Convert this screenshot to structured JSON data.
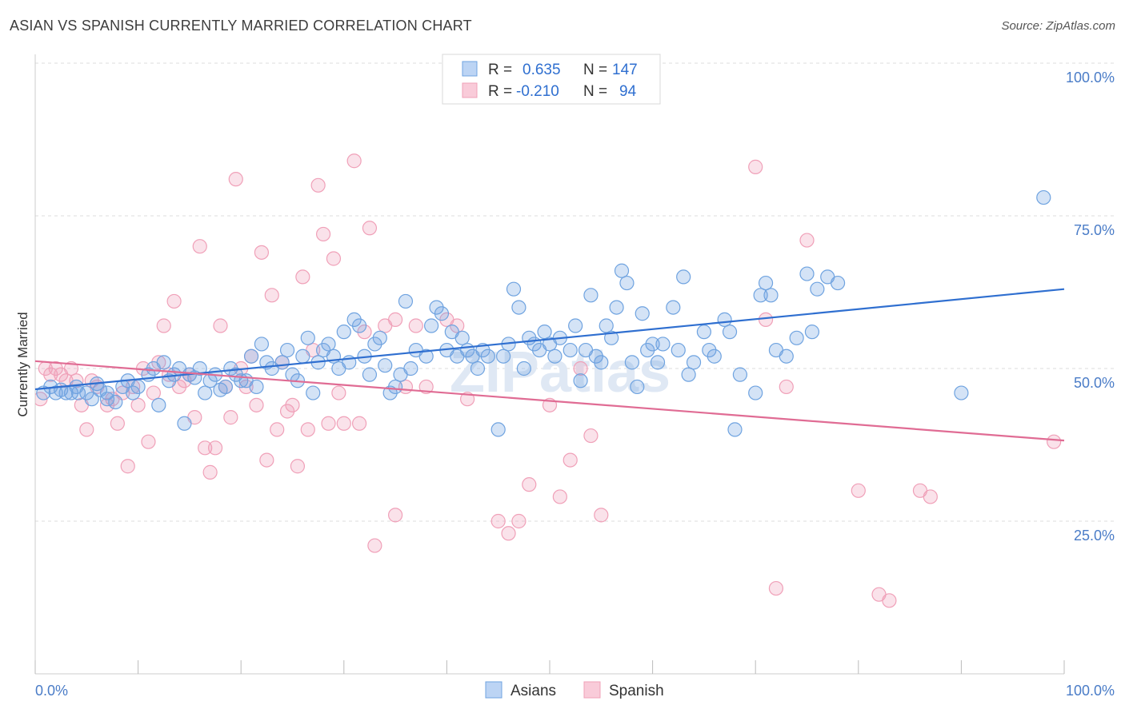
{
  "title": "ASIAN VS SPANISH CURRENTLY MARRIED CORRELATION CHART",
  "source": "Source: ZipAtlas.com",
  "chart_data": {
    "type": "scatter",
    "ylabel": "Currently Married",
    "x_tick_labels": [
      "0.0%",
      "100.0%"
    ],
    "y_tick_labels": [
      "25.0%",
      "50.0%",
      "75.0%",
      "100.0%"
    ],
    "xlim": [
      0,
      100
    ],
    "ylim": [
      0,
      105
    ],
    "grid": true,
    "legend_position": "top-center",
    "series": [
      {
        "name": "Asians",
        "color": "#6fa3e0",
        "line_color": "#2f6fd0",
        "stats": {
          "r_label": "R =",
          "r_value": "0.635",
          "n_label": "N =",
          "n_value": "147"
        },
        "trend": {
          "x": [
            0,
            100
          ],
          "y": [
            46.6,
            63.0
          ]
        },
        "points": [
          [
            0.8,
            46
          ],
          [
            1.5,
            47
          ],
          [
            2,
            46
          ],
          [
            2.5,
            46.5
          ],
          [
            3,
            46
          ],
          [
            3.5,
            46
          ],
          [
            4,
            47
          ],
          [
            4.2,
            46
          ],
          [
            5,
            46
          ],
          [
            5.5,
            45
          ],
          [
            6,
            47.5
          ],
          [
            6.3,
            46.5
          ],
          [
            7,
            46
          ],
          [
            7,
            45
          ],
          [
            7.8,
            44.5
          ],
          [
            8.5,
            47
          ],
          [
            9,
            48
          ],
          [
            9.5,
            46
          ],
          [
            10,
            47
          ],
          [
            11,
            49
          ],
          [
            11.5,
            50
          ],
          [
            12,
            44
          ],
          [
            12.5,
            51
          ],
          [
            13,
            48
          ],
          [
            13.5,
            49
          ],
          [
            14,
            50
          ],
          [
            14.5,
            41
          ],
          [
            15,
            49
          ],
          [
            15.5,
            48.5
          ],
          [
            16,
            50
          ],
          [
            16.5,
            46
          ],
          [
            17,
            48
          ],
          [
            17.5,
            49
          ],
          [
            18,
            46.5
          ],
          [
            18.5,
            47
          ],
          [
            19,
            50
          ],
          [
            19.5,
            49
          ],
          [
            20,
            48
          ],
          [
            20.5,
            48
          ],
          [
            21,
            52
          ],
          [
            21.5,
            47
          ],
          [
            22,
            54
          ],
          [
            22.5,
            51
          ],
          [
            23,
            50
          ],
          [
            24,
            51
          ],
          [
            24.5,
            53
          ],
          [
            25,
            49
          ],
          [
            25.5,
            48
          ],
          [
            26,
            52
          ],
          [
            26.5,
            55
          ],
          [
            27,
            46
          ],
          [
            27.5,
            51
          ],
          [
            28,
            53
          ],
          [
            28.5,
            54
          ],
          [
            29,
            52
          ],
          [
            29.5,
            50
          ],
          [
            30,
            56
          ],
          [
            30.5,
            51
          ],
          [
            31,
            58
          ],
          [
            31.5,
            57
          ],
          [
            32,
            52
          ],
          [
            32.5,
            49
          ],
          [
            33,
            54
          ],
          [
            33.5,
            55
          ],
          [
            34,
            50.5
          ],
          [
            34.5,
            46
          ],
          [
            35,
            47
          ],
          [
            35.5,
            49
          ],
          [
            36,
            61
          ],
          [
            36.5,
            50
          ],
          [
            37,
            53
          ],
          [
            38,
            52
          ],
          [
            38.5,
            57
          ],
          [
            39,
            60
          ],
          [
            39.5,
            59
          ],
          [
            40,
            53
          ],
          [
            40.5,
            56
          ],
          [
            41,
            52
          ],
          [
            41.5,
            55
          ],
          [
            42,
            53
          ],
          [
            42.5,
            52
          ],
          [
            43,
            50
          ],
          [
            43.5,
            53
          ],
          [
            44,
            52
          ],
          [
            45,
            40
          ],
          [
            45.5,
            52
          ],
          [
            46,
            54
          ],
          [
            46.5,
            63
          ],
          [
            47,
            60
          ],
          [
            47.5,
            50
          ],
          [
            48,
            55
          ],
          [
            48.5,
            54
          ],
          [
            49,
            53
          ],
          [
            49.5,
            56
          ],
          [
            50,
            54
          ],
          [
            50.5,
            52
          ],
          [
            51,
            55
          ],
          [
            52,
            53
          ],
          [
            52.5,
            57
          ],
          [
            53,
            48
          ],
          [
            53.5,
            53
          ],
          [
            54,
            62
          ],
          [
            54.5,
            52
          ],
          [
            55,
            51
          ],
          [
            55.5,
            57
          ],
          [
            56,
            55
          ],
          [
            56.5,
            60
          ],
          [
            57,
            66
          ],
          [
            57.5,
            64
          ],
          [
            58,
            51
          ],
          [
            58.5,
            47
          ],
          [
            59,
            59
          ],
          [
            59.5,
            53
          ],
          [
            60,
            54
          ],
          [
            60.5,
            51
          ],
          [
            61,
            54
          ],
          [
            62,
            60
          ],
          [
            62.5,
            53
          ],
          [
            63,
            65
          ],
          [
            63.5,
            49
          ],
          [
            64,
            51
          ],
          [
            65,
            56
          ],
          [
            65.5,
            53
          ],
          [
            66,
            52
          ],
          [
            67,
            58
          ],
          [
            67.5,
            56
          ],
          [
            68,
            40
          ],
          [
            68.5,
            49
          ],
          [
            70,
            46
          ],
          [
            70.5,
            62
          ],
          [
            71,
            64
          ],
          [
            71.5,
            62
          ],
          [
            72,
            53
          ],
          [
            73,
            52
          ],
          [
            74,
            55
          ],
          [
            75,
            65.5
          ],
          [
            75.5,
            56
          ],
          [
            76,
            63
          ],
          [
            77,
            65
          ],
          [
            78,
            64
          ],
          [
            98,
            78
          ],
          [
            90,
            46
          ]
        ]
      },
      {
        "name": "Spanish",
        "color": "#f0a0b8",
        "line_color": "#e06c94",
        "stats": {
          "r_label": "R =",
          "r_value": "-0.210",
          "n_label": "N =",
          "n_value": "94"
        },
        "trend": {
          "x": [
            0,
            100
          ],
          "y": [
            51.2,
            38.2
          ]
        },
        "points": [
          [
            0.5,
            45
          ],
          [
            1,
            50
          ],
          [
            1.5,
            49
          ],
          [
            2,
            50
          ],
          [
            2.5,
            49
          ],
          [
            3,
            48
          ],
          [
            3.5,
            50
          ],
          [
            4,
            48
          ],
          [
            4.5,
            44
          ],
          [
            5,
            40
          ],
          [
            5.5,
            48
          ],
          [
            6,
            47
          ],
          [
            7,
            44
          ],
          [
            7.5,
            45
          ],
          [
            8,
            41
          ],
          [
            8.5,
            46
          ],
          [
            9,
            34
          ],
          [
            9.5,
            47
          ],
          [
            10,
            44
          ],
          [
            10.5,
            50
          ],
          [
            11,
            38
          ],
          [
            11.5,
            46
          ],
          [
            12,
            51
          ],
          [
            12.5,
            57
          ],
          [
            13,
            49
          ],
          [
            13.5,
            61
          ],
          [
            14,
            47
          ],
          [
            14.5,
            48
          ],
          [
            15,
            49
          ],
          [
            15.5,
            42
          ],
          [
            16,
            70
          ],
          [
            16.5,
            37
          ],
          [
            17,
            33
          ],
          [
            17.5,
            37
          ],
          [
            18,
            57
          ],
          [
            18.5,
            47
          ],
          [
            19,
            42
          ],
          [
            19.5,
            81
          ],
          [
            20,
            50
          ],
          [
            20.5,
            47
          ],
          [
            21,
            52
          ],
          [
            21.5,
            44
          ],
          [
            22,
            69
          ],
          [
            22.5,
            35
          ],
          [
            23,
            62
          ],
          [
            23.5,
            40
          ],
          [
            24,
            51
          ],
          [
            24.5,
            43
          ],
          [
            25,
            44
          ],
          [
            25.5,
            34
          ],
          [
            26,
            65
          ],
          [
            26.5,
            40
          ],
          [
            27,
            53
          ],
          [
            27.5,
            80
          ],
          [
            28,
            72
          ],
          [
            28.5,
            41
          ],
          [
            29,
            68
          ],
          [
            29.5,
            46
          ],
          [
            30,
            41
          ],
          [
            31,
            84
          ],
          [
            31.5,
            41
          ],
          [
            32,
            56
          ],
          [
            32.5,
            73
          ],
          [
            33,
            21
          ],
          [
            34,
            57
          ],
          [
            35,
            26
          ],
          [
            36,
            47
          ],
          [
            37,
            57
          ],
          [
            38,
            47
          ],
          [
            40,
            58
          ],
          [
            41,
            57
          ],
          [
            45,
            25
          ],
          [
            46,
            23
          ],
          [
            47,
            25
          ],
          [
            48,
            31
          ],
          [
            50,
            44
          ],
          [
            51,
            29
          ],
          [
            52,
            35
          ],
          [
            53,
            50
          ],
          [
            54,
            39
          ],
          [
            55,
            26
          ],
          [
            70,
            83
          ],
          [
            71,
            58
          ],
          [
            72,
            14
          ],
          [
            73,
            47
          ],
          [
            75,
            71
          ],
          [
            80,
            30
          ],
          [
            82,
            13
          ],
          [
            83,
            12
          ],
          [
            86,
            30
          ],
          [
            87,
            29
          ],
          [
            99,
            38
          ],
          [
            35,
            58
          ],
          [
            42,
            45
          ]
        ]
      }
    ],
    "watermark": "ZIPatlas"
  },
  "legend": {
    "bottom_items": [
      "Asians",
      "Spanish"
    ]
  }
}
